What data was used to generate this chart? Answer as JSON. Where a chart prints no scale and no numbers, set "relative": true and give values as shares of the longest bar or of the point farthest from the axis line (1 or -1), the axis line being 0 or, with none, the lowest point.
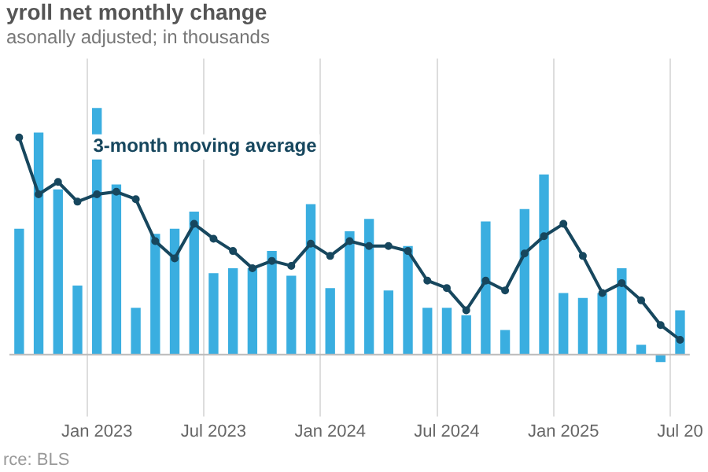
{
  "chart_data": {
    "type": "bar",
    "title": "yroll net monthly change",
    "subtitle": "asonally adjusted; in thousands",
    "annotations": [
      "rce: BLS"
    ],
    "categories": [
      null,
      null,
      null,
      null,
      "Jan 2023",
      null,
      null,
      null,
      null,
      null,
      "Jul 2023",
      null,
      null,
      null,
      null,
      null,
      "Jan 2024",
      null,
      null,
      null,
      null,
      null,
      "Jul 2024",
      null,
      null,
      null,
      null,
      null,
      "Jan 2025",
      null,
      null,
      null,
      null,
      null,
      "Jul 20"
    ],
    "relative": true,
    "grid": "x",
    "legend": false,
    "series": [
      {
        "color": "#3aaee0",
        "values": [
          0.51,
          0.9,
          0.67,
          0.28,
          1,
          0.69,
          0.19,
          0.49,
          0.51,
          0.58,
          0.33,
          0.35,
          0.35,
          0.42,
          0.32,
          0.61,
          0.27,
          0.5,
          0.55,
          0.26,
          0.44,
          0.19,
          0.19,
          0.16,
          0.54,
          0.1,
          0.59,
          0.73,
          0.25,
          0.23,
          0.25,
          0.35,
          0.04,
          -0.03,
          0.18
        ]
      },
      {
        "type": "line",
        "name": "3-month moving average",
        "marker": "circle",
        "color": "#17475e",
        "values": [
          0.88,
          0.65,
          0.7,
          0.62,
          0.65,
          0.66,
          0.63,
          0.46,
          0.39,
          0.53,
          0.47,
          0.42,
          0.35,
          0.38,
          0.36,
          0.45,
          0.4,
          0.46,
          0.44,
          0.44,
          0.42,
          0.3,
          0.27,
          0.18,
          0.3,
          0.26,
          0.41,
          0.48,
          0.53,
          0.4,
          0.25,
          0.29,
          0.22,
          0.12,
          0.06
        ]
      }
    ]
  }
}
